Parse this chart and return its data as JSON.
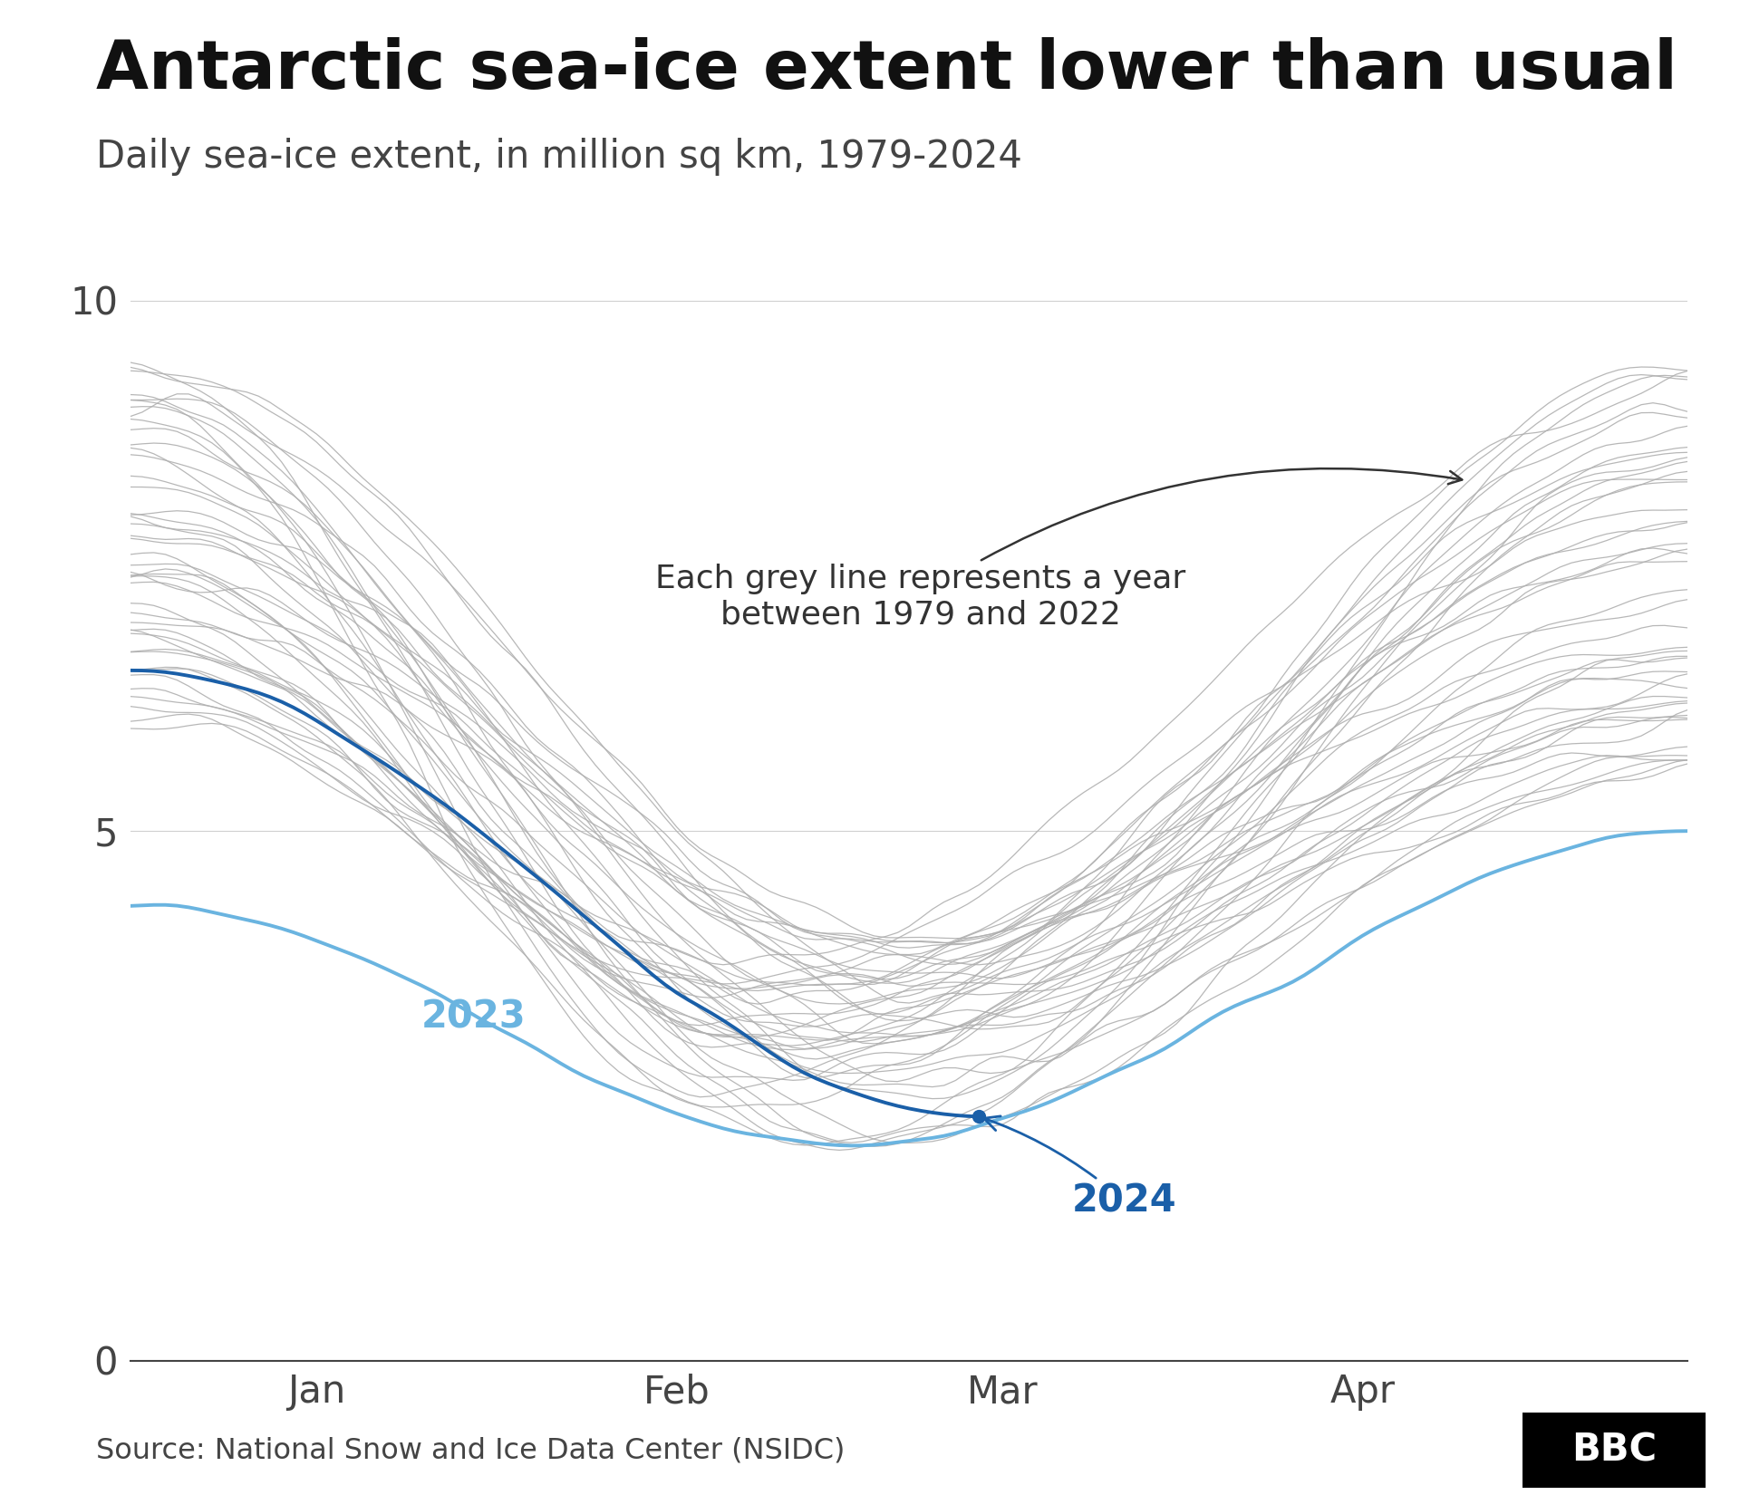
{
  "title": "Antarctic sea-ice extent lower than usual",
  "subtitle": "Daily sea-ice extent, in million sq km, 1979-2024",
  "source": "Source: National Snow and Ice Data Center (NSIDC)",
  "background_color": "#ffffff",
  "grey_color": "#b0b0b0",
  "color_2023": "#6ab4e0",
  "color_2024": "#1a5fa8",
  "ylim": [
    0,
    11.0
  ],
  "yticks": [
    0,
    5,
    10
  ],
  "annotation_grey": "Each grey line represents a year\nbetween 1979 and 2022",
  "annotation_2024": "2024",
  "annotation_2023": "2023",
  "total_days": 135,
  "month_labels": [
    "Jan",
    "Feb",
    "Mar",
    "Apr"
  ],
  "month_tick_days": [
    16,
    47,
    75,
    106
  ]
}
